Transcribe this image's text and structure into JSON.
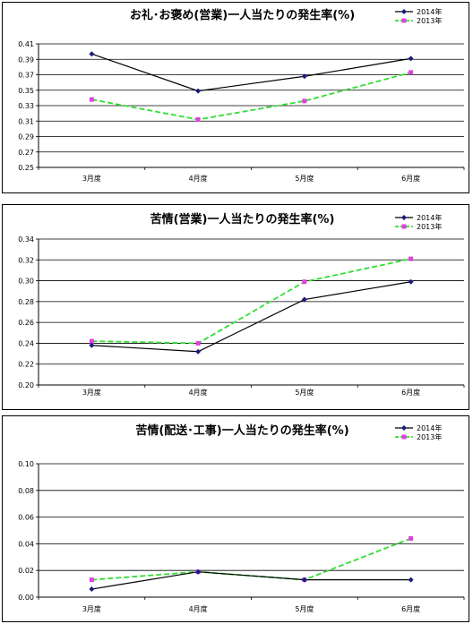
{
  "chart_data": [
    {
      "type": "line",
      "title": "お礼･お褒め(営業)一人当たりの発生率(%)",
      "categories": [
        "3月度",
        "4月度",
        "5月度",
        "6月度"
      ],
      "ylim": [
        0.25,
        0.41
      ],
      "yticks": [
        "0.25",
        "0.27",
        "0.29",
        "0.31",
        "0.33",
        "0.35",
        "0.37",
        "0.39",
        "0.41"
      ],
      "grid": true,
      "legend": "top-right",
      "series": [
        {
          "name": "2014年",
          "values": [
            0.397,
            0.349,
            0.368,
            0.391
          ],
          "color": "#000000",
          "marker_color": "#1a1a80",
          "dashed": false
        },
        {
          "name": "2013年",
          "values": [
            0.338,
            0.312,
            0.336,
            0.373
          ],
          "color": "#33dd33",
          "marker_color": "#e040e0",
          "dashed": true
        }
      ]
    },
    {
      "type": "line",
      "title": "苦情(営業)一人当たりの発生率(%)",
      "categories": [
        "3月度",
        "4月度",
        "5月度",
        "6月度"
      ],
      "ylim": [
        0.2,
        0.34
      ],
      "yticks": [
        "0.20",
        "0.22",
        "0.24",
        "0.26",
        "0.28",
        "0.30",
        "0.32",
        "0.34"
      ],
      "grid": true,
      "legend": "top-right",
      "series": [
        {
          "name": "2014年",
          "values": [
            0.238,
            0.232,
            0.282,
            0.299
          ],
          "color": "#000000",
          "marker_color": "#1a1a80",
          "dashed": false
        },
        {
          "name": "2013年",
          "values": [
            0.242,
            0.24,
            0.299,
            0.321
          ],
          "color": "#33dd33",
          "marker_color": "#e040e0",
          "dashed": true
        }
      ]
    },
    {
      "type": "line",
      "title": "苦情(配送･工事)一人当たりの発生率(%)",
      "categories": [
        "3月度",
        "4月度",
        "5月度",
        "6月度"
      ],
      "ylim": [
        0.0,
        0.1
      ],
      "yticks": [
        "0.00",
        "0.02",
        "0.04",
        "0.06",
        "0.08",
        "0.10"
      ],
      "grid": true,
      "legend": "top-right",
      "series": [
        {
          "name": "2014年",
          "values": [
            0.006,
            0.019,
            0.013,
            0.013
          ],
          "color": "#000000",
          "marker_color": "#1a1a80",
          "dashed": false
        },
        {
          "name": "2013年",
          "values": [
            0.013,
            0.019,
            0.013,
            0.044
          ],
          "color": "#33dd33",
          "marker_color": "#e040e0",
          "dashed": true
        }
      ]
    }
  ]
}
